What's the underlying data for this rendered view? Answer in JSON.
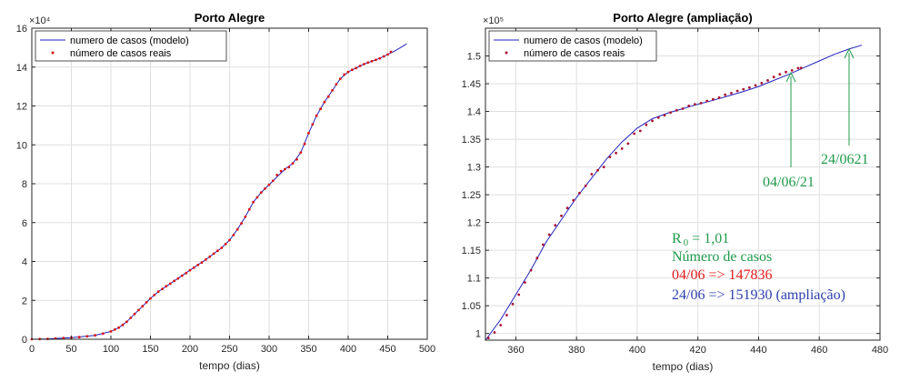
{
  "chart_data": [
    {
      "type": "line",
      "title": "Porto Alegre",
      "xlabel": "tempo (dias)",
      "ylabel": "",
      "y_exponent": "×10⁴",
      "xlim": [
        0,
        500
      ],
      "ylim": [
        0,
        160000
      ],
      "xticks": [
        0,
        50,
        100,
        150,
        200,
        250,
        300,
        350,
        400,
        450,
        500
      ],
      "yticks": [
        0,
        20000,
        40000,
        60000,
        80000,
        100000,
        120000,
        140000,
        160000
      ],
      "ytick_labels": [
        "0",
        "2",
        "4",
        "6",
        "8",
        "10",
        "12",
        "14",
        "16"
      ],
      "grid": true,
      "legend_position": "top-left",
      "series": [
        {
          "name": "numero de casos (modelo)",
          "style": "line",
          "color": "#2222bb",
          "x": [
            0,
            20,
            50,
            80,
            100,
            110,
            120,
            130,
            140,
            150,
            160,
            180,
            200,
            220,
            240,
            250,
            260,
            270,
            280,
            290,
            300,
            310,
            320,
            330,
            340,
            350,
            360,
            370,
            380,
            390,
            400,
            410,
            420,
            430,
            440,
            450,
            460,
            474
          ],
          "y": [
            0,
            200,
            800,
            2000,
            4000,
            6000,
            9000,
            13000,
            17000,
            21000,
            24500,
            30000,
            35500,
            41000,
            47000,
            51000,
            56500,
            63000,
            70500,
            75500,
            79500,
            83500,
            87500,
            90500,
            96000,
            106000,
            115000,
            122000,
            128000,
            134000,
            137500,
            139500,
            141500,
            143000,
            144500,
            146500,
            148500,
            151930
          ]
        },
        {
          "name": "número de casos reais",
          "style": "points",
          "color": "#dd1111",
          "x": [
            0,
            10,
            20,
            30,
            40,
            50,
            60,
            70,
            80,
            90,
            100,
            105,
            110,
            115,
            120,
            125,
            130,
            135,
            140,
            145,
            150,
            155,
            160,
            165,
            170,
            175,
            180,
            185,
            190,
            195,
            200,
            205,
            210,
            215,
            220,
            225,
            230,
            235,
            240,
            245,
            250,
            255,
            260,
            265,
            270,
            275,
            280,
            285,
            290,
            295,
            300,
            305,
            310,
            315,
            320,
            325,
            330,
            335,
            340,
            345,
            350,
            355,
            360,
            365,
            370,
            375,
            380,
            385,
            390,
            395,
            400,
            405,
            410,
            415,
            420,
            425,
            430,
            435,
            440,
            445,
            450,
            454
          ],
          "y": [
            0,
            100,
            200,
            400,
            600,
            800,
            1100,
            1500,
            2000,
            2900,
            4000,
            5000,
            6000,
            7400,
            9000,
            11000,
            13000,
            15000,
            17000,
            19000,
            21000,
            22800,
            24500,
            25900,
            27300,
            28600,
            30000,
            31300,
            32700,
            34000,
            35500,
            36800,
            38200,
            39500,
            41000,
            42500,
            44000,
            45500,
            47000,
            49000,
            51000,
            53600,
            56500,
            59600,
            63000,
            66800,
            70500,
            73000,
            75500,
            77500,
            79500,
            81500,
            84500,
            86500,
            87500,
            88500,
            90500,
            92500,
            96000,
            100500,
            106000,
            110500,
            115000,
            118500,
            122000,
            124800,
            128000,
            131200,
            134000,
            136200,
            137500,
            138600,
            139500,
            140600,
            141500,
            142300,
            143000,
            143700,
            144500,
            145500,
            146500,
            147836
          ]
        }
      ]
    },
    {
      "type": "line",
      "title": "Porto Alegre (ampliação)",
      "xlabel": "tempo (dias)",
      "ylabel": "",
      "y_exponent": "×10⁵",
      "xlim": [
        350,
        480
      ],
      "ylim": [
        98800,
        155000
      ],
      "xticks": [
        360,
        380,
        400,
        420,
        440,
        460,
        480
      ],
      "yticks": [
        100000,
        105000,
        110000,
        115000,
        120000,
        125000,
        130000,
        135000,
        140000,
        145000,
        150000
      ],
      "ytick_labels": [
        "1",
        "1.05",
        "1.1",
        "1.15",
        "1.2",
        "1.25",
        "1.3",
        "1.35",
        "1.4",
        "1.45",
        "1.5"
      ],
      "grid": true,
      "legend_position": "top-left",
      "series": [
        {
          "name": "numero de casos (modelo)",
          "style": "line",
          "color": "#2222bb",
          "x": [
            350,
            355,
            360,
            365,
            370,
            375,
            380,
            385,
            390,
            395,
            400,
            405,
            410,
            415,
            420,
            425,
            430,
            435,
            440,
            445,
            450,
            455,
            460,
            465,
            470,
            474
          ],
          "y": [
            98800,
            102500,
            107000,
            111500,
            116500,
            120500,
            124500,
            128000,
            131500,
            134500,
            137000,
            138700,
            139700,
            140500,
            141300,
            142000,
            142800,
            143600,
            144500,
            145600,
            146700,
            147900,
            149100,
            150300,
            151300,
            151930
          ]
        },
        {
          "name": "número de casos reais",
          "style": "points",
          "color": "#aa1133",
          "x": [
            351,
            353,
            355,
            357,
            359,
            361,
            363,
            365,
            367,
            369,
            371,
            373,
            375,
            377,
            379,
            381,
            383,
            385,
            387,
            389,
            391,
            393,
            395,
            397,
            399,
            401,
            403,
            405,
            407,
            409,
            411,
            413,
            415,
            417,
            419,
            421,
            423,
            425,
            427,
            429,
            431,
            433,
            435,
            437,
            439,
            441,
            443,
            445,
            447,
            449,
            451,
            453,
            454
          ],
          "y": [
            99200,
            100200,
            101500,
            103300,
            105300,
            107000,
            109200,
            111400,
            113600,
            116000,
            117800,
            119500,
            121200,
            122600,
            124000,
            125300,
            126600,
            128700,
            129400,
            130000,
            131800,
            132500,
            133300,
            134200,
            136000,
            136500,
            137600,
            138300,
            138900,
            139300,
            139800,
            140200,
            140500,
            141000,
            141300,
            141500,
            141900,
            142200,
            142500,
            143000,
            143300,
            143700,
            144000,
            144300,
            144700,
            145100,
            145600,
            146200,
            146700,
            147100,
            147400,
            147800,
            147836
          ]
        }
      ]
    }
  ],
  "annotations": {
    "date_first": "04/06/21",
    "date_second": "24/0621",
    "r0_base": "R",
    "r0_sub": "0",
    "r0_value": " = 1,01",
    "cases_heading": "Número de casos",
    "line_0406": "04/06 => 147836",
    "line_2406": "24/06 => 151930 (ampliação)",
    "color_green": "#1f9a4a",
    "color_red": "#e21b1b",
    "color_blue": "#2b3fae"
  }
}
